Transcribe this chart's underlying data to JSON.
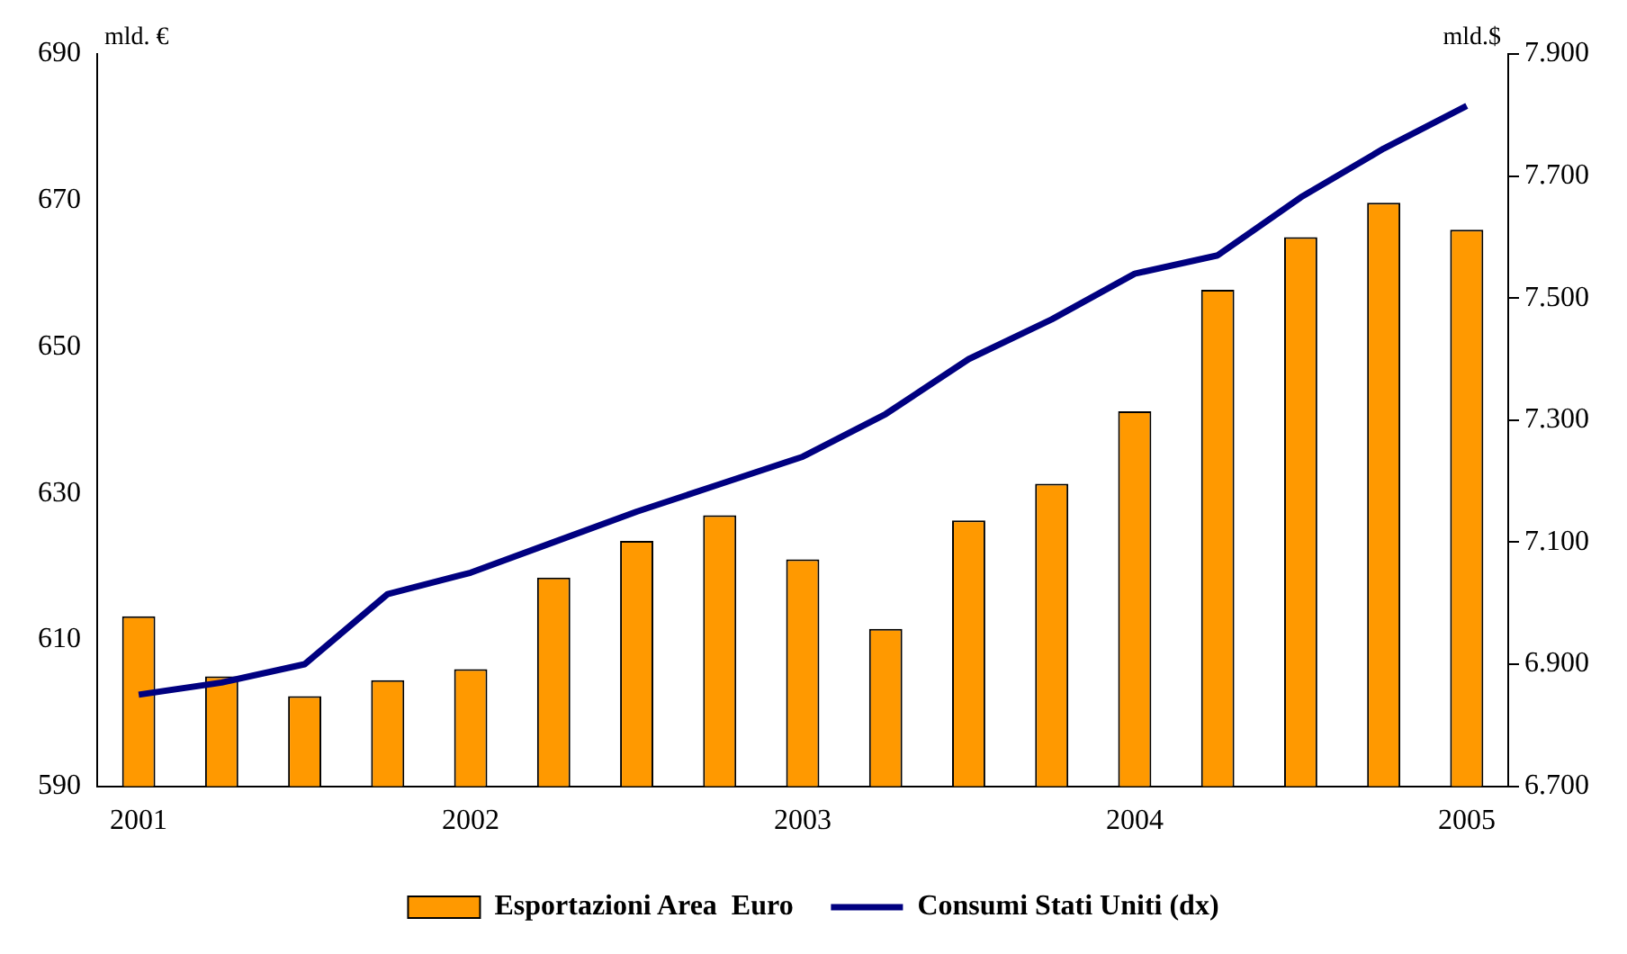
{
  "chart_data": {
    "type": "bar",
    "categories": [
      "2001",
      null,
      null,
      null,
      "2002",
      null,
      null,
      null,
      "2003",
      null,
      null,
      null,
      "2004",
      null,
      null,
      null,
      "2005"
    ],
    "ylabel": "mld. €",
    "y2label": "mld.$",
    "series": [
      {
        "name": "Esportazioni Area  Euro",
        "color": "#ff9900",
        "values": [
          613.2,
          605,
          602.3,
          604.5,
          606,
          618.5,
          623.5,
          627,
          621,
          611.5,
          626.3,
          631.3,
          641.2,
          657.8,
          665,
          669.7,
          666
        ]
      },
      {
        "name": "Consumi Stati Uniti (dx)",
        "type": "line",
        "axis": "y2",
        "color": "#000080",
        "values": [
          6850,
          6870,
          6900,
          7015,
          7050,
          7100,
          7150,
          7195,
          7240,
          7310,
          7400,
          7465,
          7540,
          7570,
          7665,
          7745,
          7815
        ]
      }
    ],
    "ylim": [
      590,
      690
    ],
    "yticks": [
      590,
      610,
      630,
      650,
      670,
      690
    ],
    "y2lim": [
      6700,
      7900
    ],
    "y2ticks": [
      {
        "value": 6700,
        "label": "6.700"
      },
      {
        "value": 6900,
        "label": "6.900"
      },
      {
        "value": 7100,
        "label": "7.100"
      },
      {
        "value": 7300,
        "label": "7.300"
      },
      {
        "value": 7500,
        "label": "7.500"
      },
      {
        "value": 7700,
        "label": "7.700"
      },
      {
        "value": 7900,
        "label": "7.900"
      }
    ],
    "grid": false,
    "legend": "bottom",
    "marker": "none"
  }
}
